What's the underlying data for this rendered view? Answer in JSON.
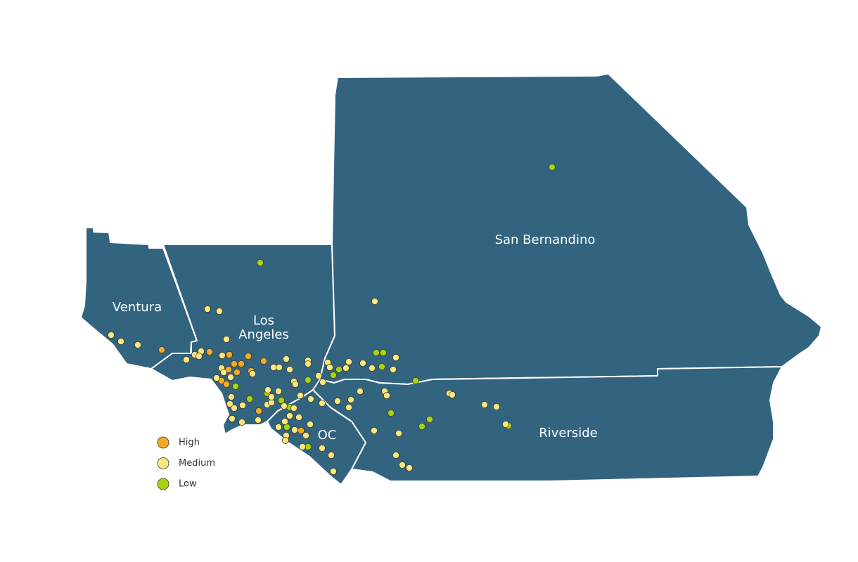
{
  "regions": [
    {
      "lines": [
        "Ventura"
      ]
    },
    {
      "lines": [
        "Los",
        "Angeles"
      ]
    },
    {
      "lines": [
        "San Bernandino"
      ]
    },
    {
      "lines": [
        "OC"
      ]
    },
    {
      "lines": [
        "Riverside"
      ]
    }
  ],
  "legend": [
    {
      "label": "High",
      "color": "#f5ab25"
    },
    {
      "label": "Medium",
      "color": "#fbe77f"
    },
    {
      "label": "Low",
      "color": "#a9d311"
    }
  ]
}
